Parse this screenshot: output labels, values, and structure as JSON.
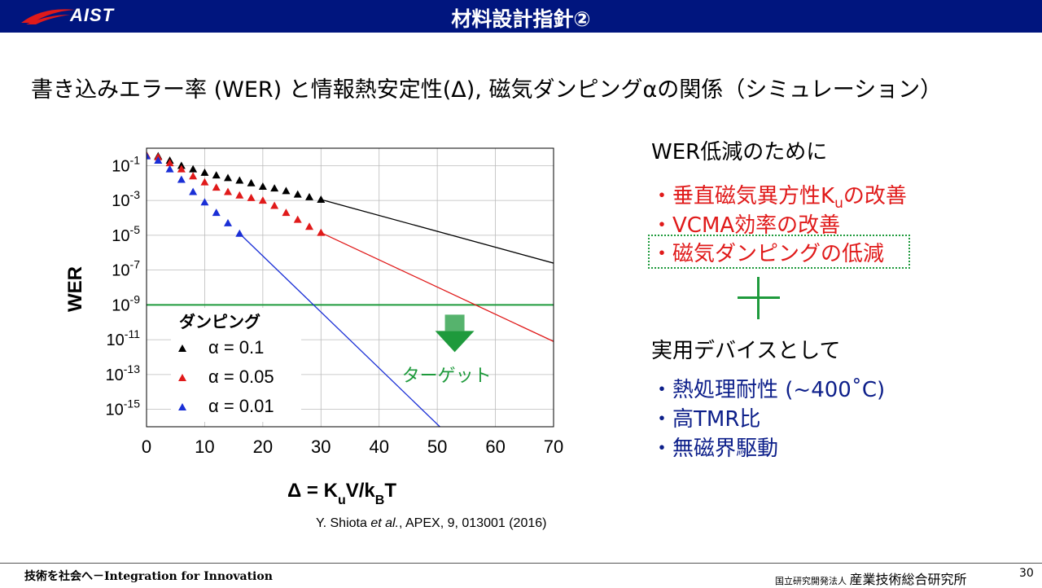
{
  "header": {
    "logo_text": "AIST",
    "title": "材料設計指針②"
  },
  "subtitle": "書き込みエラー率 (WER) と情報熱安定性(Δ), 磁気ダンピングαの関係（シミュレーション）",
  "chart_data": {
    "type": "scatter",
    "xlabel": "Δ = KuV/kBT",
    "ylabel": "WER",
    "xlim": [
      0,
      70
    ],
    "ylim_log10": [
      -16,
      0
    ],
    "y_scale": "log",
    "x_ticks": [
      "0",
      "10",
      "20",
      "30",
      "40",
      "50",
      "60",
      "70"
    ],
    "y_ticks": [
      {
        "base": "10",
        "exp": "-1",
        "value": -1
      },
      {
        "base": "10",
        "exp": "-3",
        "value": -3
      },
      {
        "base": "10",
        "exp": "-5",
        "value": -5
      },
      {
        "base": "10",
        "exp": "-7",
        "value": -7
      },
      {
        "base": "10",
        "exp": "-9",
        "value": -9
      },
      {
        "base": "10",
        "exp": "-11",
        "value": -11
      },
      {
        "base": "10",
        "exp": "-13",
        "value": -13
      },
      {
        "base": "10",
        "exp": "-15",
        "value": -15
      }
    ],
    "grid": true,
    "legend_title": "ダンピング",
    "legend_position": "bottom-left",
    "series": [
      {
        "name": "α = 0.1",
        "color": "#000000",
        "points": [
          [
            0,
            -0.4
          ],
          [
            2,
            -0.45
          ],
          [
            4,
            -0.7
          ],
          [
            6,
            -1.0
          ],
          [
            8,
            -1.2
          ],
          [
            10,
            -1.4
          ],
          [
            12,
            -1.55
          ],
          [
            14,
            -1.7
          ],
          [
            16,
            -1.85
          ],
          [
            18,
            -2.0
          ],
          [
            20,
            -2.2
          ],
          [
            22,
            -2.3
          ],
          [
            24,
            -2.45
          ],
          [
            26,
            -2.65
          ],
          [
            28,
            -2.8
          ],
          [
            30,
            -2.95
          ]
        ],
        "fit_line": [
          [
            30,
            -2.95
          ],
          [
            70,
            -6.6
          ]
        ]
      },
      {
        "name": "α = 0.05",
        "color": "#e01a1a",
        "points": [
          [
            0,
            -0.4
          ],
          [
            2,
            -0.5
          ],
          [
            4,
            -0.85
          ],
          [
            6,
            -1.2
          ],
          [
            8,
            -1.6
          ],
          [
            10,
            -1.95
          ],
          [
            12,
            -2.25
          ],
          [
            14,
            -2.5
          ],
          [
            16,
            -2.7
          ],
          [
            18,
            -2.85
          ],
          [
            20,
            -3.0
          ],
          [
            22,
            -3.3
          ],
          [
            24,
            -3.7
          ],
          [
            26,
            -4.1
          ],
          [
            28,
            -4.5
          ],
          [
            30,
            -4.85
          ]
        ],
        "fit_line": [
          [
            30,
            -4.85
          ],
          [
            70,
            -11.1
          ]
        ]
      },
      {
        "name": "α = 0.01",
        "color": "#1a2fd6",
        "points": [
          [
            0,
            -0.45
          ],
          [
            2,
            -0.7
          ],
          [
            4,
            -1.2
          ],
          [
            6,
            -1.8
          ],
          [
            8,
            -2.5
          ],
          [
            10,
            -3.1
          ],
          [
            12,
            -3.7
          ],
          [
            14,
            -4.3
          ],
          [
            16,
            -4.9
          ]
        ],
        "fit_line": [
          [
            16,
            -4.9
          ],
          [
            52,
            -16.5
          ]
        ]
      }
    ],
    "target": {
      "value_log10": -9,
      "color": "#1e9a3c",
      "label": "ターゲット"
    }
  },
  "right_panel": {
    "heading1": "WER低減のために",
    "items_red": [
      {
        "prefix": "・",
        "text": "垂直磁気異方性K",
        "sub": "u",
        "suffix": "の改善"
      },
      {
        "prefix": "・",
        "text": "VCMA効率の改善",
        "sub": "",
        "suffix": ""
      },
      {
        "prefix": "・",
        "text": "磁気ダンピングの低減",
        "sub": "",
        "suffix": ""
      }
    ],
    "plus_color": "#1e9a3c",
    "heading2": "実用デバイスとして",
    "items_blue": [
      {
        "prefix": "・",
        "text": "熱処理耐性 (~400˚C)"
      },
      {
        "prefix": "・",
        "text": "高TMR比"
      },
      {
        "prefix": "・",
        "text": "無磁界駆動"
      }
    ]
  },
  "citation": {
    "authors": "Y. Shiota ",
    "etal": "et al.",
    "rest": ", APEX, 9, 013001 (2016)"
  },
  "footer": {
    "slogan": "技術を社会へ－Integration for Innovation",
    "org_small": "国立研究開発法人 ",
    "org": "産業技術総合研究所",
    "page_number": "30"
  }
}
